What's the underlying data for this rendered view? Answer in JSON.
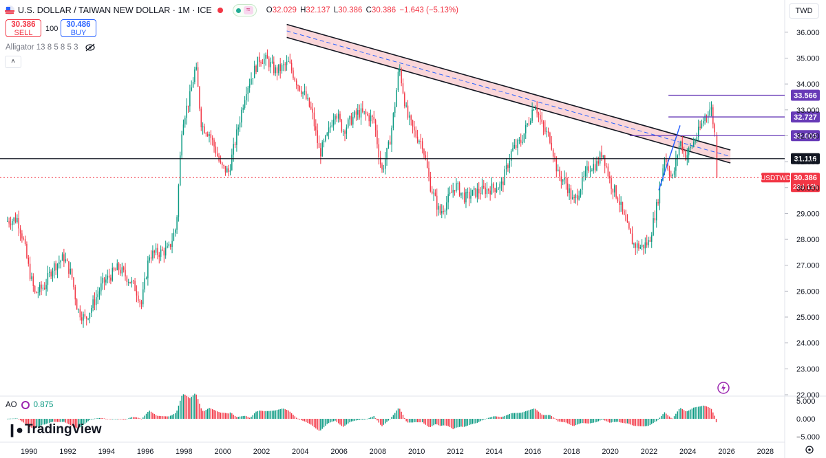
{
  "header": {
    "title": "U.S. DOLLAR / TAIWAN NEW DOLLAR · 1M · ICE",
    "pill_icon": "≈",
    "ohlc": [
      {
        "k": "O",
        "v": "32.029"
      },
      {
        "k": "H",
        "v": "32.137"
      },
      {
        "k": "L",
        "v": "30.386"
      },
      {
        "k": "C",
        "v": "30.386"
      },
      {
        "k": "",
        "v": "−1.643 (−5.13%)"
      }
    ]
  },
  "trade": {
    "sell_price": "30.386",
    "sell_label": "SELL",
    "qty": "100",
    "buy_price": "30.486",
    "buy_label": "BUY"
  },
  "indicator": {
    "label": "Alligator 13 8 5 8 5 3",
    "collapse_icon": "chevron-up-icon"
  },
  "currency": "TWD",
  "ao": {
    "label": "AO",
    "value": "0.875"
  },
  "logo": "TradingView",
  "colors": {
    "up": "#089981",
    "down": "#f23645",
    "channel_fill": "#f8c8cc",
    "levels": "#673ab7",
    "axis_text": "#131722"
  },
  "chart_data": {
    "type": "candlestick",
    "symbol": "USDTWD",
    "interval": "1M",
    "last_price": "30.386",
    "countdown": "28d 12h",
    "ylim": [
      22.0,
      36.5
    ],
    "y_ticks": [
      "36.000",
      "35.000",
      "34.000",
      "33.000",
      "32.000",
      "31.000",
      "30.000",
      "29.000",
      "28.000",
      "27.000",
      "26.000",
      "25.000",
      "24.000",
      "23.000",
      "22.000"
    ],
    "x_ticks": [
      "1990",
      "1992",
      "1994",
      "1996",
      "1998",
      "2000",
      "2002",
      "2004",
      "2006",
      "2008",
      "2010",
      "2012",
      "2014",
      "2016",
      "2018",
      "2020",
      "2022",
      "2024",
      "2026",
      "2028"
    ],
    "price_path": [
      [
        1988.8,
        28.7
      ],
      [
        1989.4,
        28.8
      ],
      [
        1989.7,
        28.0
      ],
      [
        1990.0,
        26.8
      ],
      [
        1990.3,
        25.9
      ],
      [
        1990.8,
        26.2
      ],
      [
        1991.2,
        26.9
      ],
      [
        1991.8,
        27.3
      ],
      [
        1992.2,
        26.6
      ],
      [
        1992.5,
        25.3
      ],
      [
        1992.9,
        24.9
      ],
      [
        1993.3,
        25.5
      ],
      [
        1993.8,
        26.3
      ],
      [
        1994.2,
        26.6
      ],
      [
        1994.6,
        26.9
      ],
      [
        1995.1,
        26.5
      ],
      [
        1995.5,
        26.1
      ],
      [
        1995.8,
        25.5
      ],
      [
        1996.2,
        27.4
      ],
      [
        1996.8,
        27.5
      ],
      [
        1997.2,
        27.6
      ],
      [
        1997.6,
        28.5
      ],
      [
        1997.9,
        32.5
      ],
      [
        1998.3,
        33.5
      ],
      [
        1998.6,
        34.7
      ],
      [
        1998.9,
        32.4
      ],
      [
        1999.3,
        32.1
      ],
      [
        1999.6,
        31.5
      ],
      [
        1999.9,
        30.8
      ],
      [
        2000.3,
        30.6
      ],
      [
        2000.7,
        32.0
      ],
      [
        2001.2,
        33.8
      ],
      [
        2001.5,
        34.3
      ],
      [
        2001.9,
        35.0
      ],
      [
        2002.3,
        34.9
      ],
      [
        2002.7,
        34.5
      ],
      [
        2003.0,
        34.6
      ],
      [
        2003.4,
        34.8
      ],
      [
        2003.8,
        34.1
      ],
      [
        2004.2,
        33.6
      ],
      [
        2004.6,
        32.9
      ],
      [
        2005.0,
        31.3
      ],
      [
        2005.4,
        32.0
      ],
      [
        2005.8,
        33.0
      ],
      [
        2006.2,
        32.2
      ],
      [
        2006.6,
        32.6
      ],
      [
        2007.0,
        32.9
      ],
      [
        2007.4,
        32.8
      ],
      [
        2007.8,
        32.6
      ],
      [
        2008.2,
        30.6
      ],
      [
        2008.6,
        31.7
      ],
      [
        2008.9,
        33.3
      ],
      [
        2009.1,
        34.7
      ],
      [
        2009.5,
        32.8
      ],
      [
        2009.9,
        32.1
      ],
      [
        2010.3,
        31.7
      ],
      [
        2010.7,
        30.1
      ],
      [
        2011.2,
        29.0
      ],
      [
        2011.6,
        29.5
      ],
      [
        2012.0,
        30.1
      ],
      [
        2012.5,
        29.6
      ],
      [
        2013.0,
        29.8
      ],
      [
        2013.5,
        29.9
      ],
      [
        2014.0,
        30.0
      ],
      [
        2014.4,
        30.1
      ],
      [
        2014.9,
        31.4
      ],
      [
        2015.4,
        31.8
      ],
      [
        2015.8,
        32.6
      ],
      [
        2016.1,
        33.3
      ],
      [
        2016.5,
        32.3
      ],
      [
        2016.9,
        31.9
      ],
      [
        2017.3,
        30.5
      ],
      [
        2017.7,
        30.2
      ],
      [
        2018.1,
        29.4
      ],
      [
        2018.5,
        30.1
      ],
      [
        2018.9,
        30.8
      ],
      [
        2019.3,
        30.9
      ],
      [
        2019.6,
        31.4
      ],
      [
        2020.0,
        30.2
      ],
      [
        2020.4,
        29.6
      ],
      [
        2020.8,
        28.6
      ],
      [
        2021.2,
        27.8
      ],
      [
        2021.6,
        27.7
      ],
      [
        2022.0,
        27.9
      ],
      [
        2022.4,
        29.3
      ],
      [
        2022.8,
        31.2
      ],
      [
        2023.2,
        30.3
      ],
      [
        2023.6,
        31.8
      ],
      [
        2023.9,
        31.2
      ],
      [
        2024.2,
        31.6
      ],
      [
        2024.6,
        32.2
      ],
      [
        2024.9,
        32.8
      ],
      [
        2025.2,
        33.1
      ],
      [
        2025.4,
        32.0
      ],
      [
        2025.5,
        30.386
      ]
    ],
    "channel": {
      "upper": [
        [
          2003.3,
          36.3
        ],
        [
          2026.2,
          31.45
        ]
      ],
      "lower": [
        [
          2003.3,
          35.8
        ],
        [
          2026.2,
          30.95
        ]
      ],
      "mid": [
        [
          2003.3,
          36.05
        ],
        [
          2026.2,
          31.2
        ]
      ]
    },
    "horizontal_levels": [
      {
        "value": 33.566,
        "label": "33.566",
        "from": 2023.0
      },
      {
        "value": 32.727,
        "label": "32.727",
        "from": 2023.0
      },
      {
        "value": 32.005,
        "label": "32.005",
        "from": 2021.0
      },
      {
        "value": 31.116,
        "label": "31.116",
        "from": 1988.5,
        "color": "#131722"
      }
    ],
    "price_line": {
      "value": 30.386,
      "label": "30.386",
      "tag": "USDTWD"
    },
    "blue_segment": [
      [
        2022.5,
        29.9
      ],
      [
        2023.6,
        32.4
      ]
    ],
    "ao_ticks": [
      "5.000",
      "0.000",
      "−5.000"
    ],
    "ao_ylim": [
      -6.0,
      6.0
    ]
  }
}
